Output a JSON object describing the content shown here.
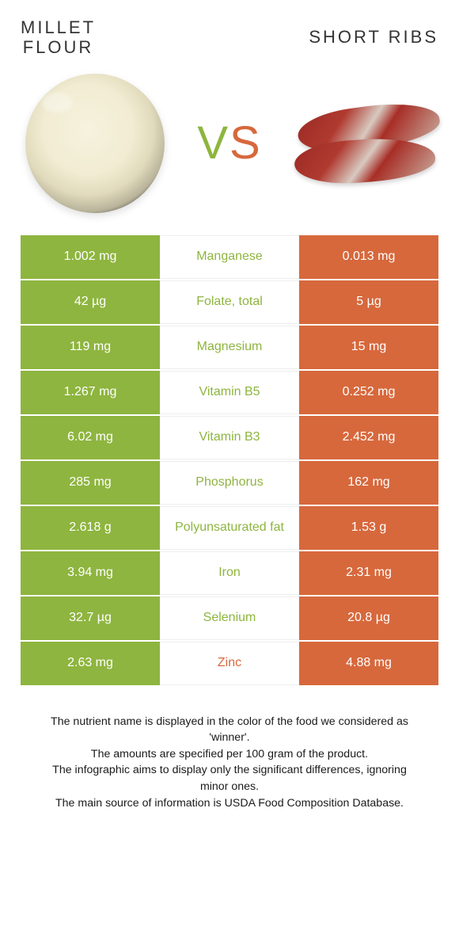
{
  "titles": {
    "left_line1": "MILLET",
    "left_line2": "FLOUR",
    "right": "SHORT RIBS"
  },
  "vs": {
    "text": "VS",
    "left_color": "#8eb53f",
    "right_color": "#d7683c"
  },
  "colors": {
    "green": "#8eb53f",
    "orange": "#d7683c",
    "green_text": "#8eb53f",
    "orange_text": "#d7683c",
    "row_border": "#eeeeee",
    "white": "#ffffff"
  },
  "table": {
    "left_bg": "#8eb53f",
    "right_bg": "#d7683c",
    "rows": [
      {
        "left": "1.002 mg",
        "label": "Manganese",
        "right": "0.013 mg",
        "winner": "left"
      },
      {
        "left": "42 µg",
        "label": "Folate, total",
        "right": "5 µg",
        "winner": "left"
      },
      {
        "left": "119 mg",
        "label": "Magnesium",
        "right": "15 mg",
        "winner": "left"
      },
      {
        "left": "1.267 mg",
        "label": "Vitamin B5",
        "right": "0.252 mg",
        "winner": "left"
      },
      {
        "left": "6.02 mg",
        "label": "Vitamin B3",
        "right": "2.452 mg",
        "winner": "left"
      },
      {
        "left": "285 mg",
        "label": "Phosphorus",
        "right": "162 mg",
        "winner": "left"
      },
      {
        "left": "2.618 g",
        "label": "Polyunsaturated fat",
        "right": "1.53 g",
        "winner": "left"
      },
      {
        "left": "3.94 mg",
        "label": "Iron",
        "right": "2.31 mg",
        "winner": "left"
      },
      {
        "left": "32.7 µg",
        "label": "Selenium",
        "right": "20.8 µg",
        "winner": "left"
      },
      {
        "left": "2.63 mg",
        "label": "Zinc",
        "right": "4.88 mg",
        "winner": "right"
      }
    ]
  },
  "footnotes": [
    "The nutrient name is displayed in the color of the food we considered as 'winner'.",
    "The amounts are specified per 100 gram of the product.",
    "The infographic aims to display only the significant differences, ignoring minor ones.",
    "The main source of information is USDA Food Composition Database."
  ]
}
